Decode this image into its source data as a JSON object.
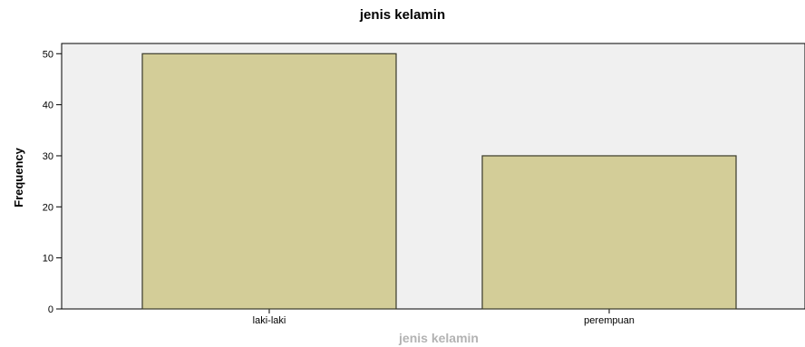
{
  "chart_data": {
    "type": "bar",
    "title": "jenis kelamin",
    "xlabel": "jenis kelamin",
    "ylabel": "Frequency",
    "categories": [
      "laki-laki",
      "perempuan"
    ],
    "values": [
      50,
      30
    ],
    "ylim": [
      0,
      52
    ],
    "yticks": [
      "0",
      "10",
      "20",
      "30",
      "40",
      "50"
    ],
    "grid": false,
    "legend": "none",
    "colors": {
      "bar_fill": "#d3cd98",
      "bar_stroke": "#3a3a2a",
      "plot_background": "#f0f0f0",
      "plot_border": "#000000"
    }
  }
}
